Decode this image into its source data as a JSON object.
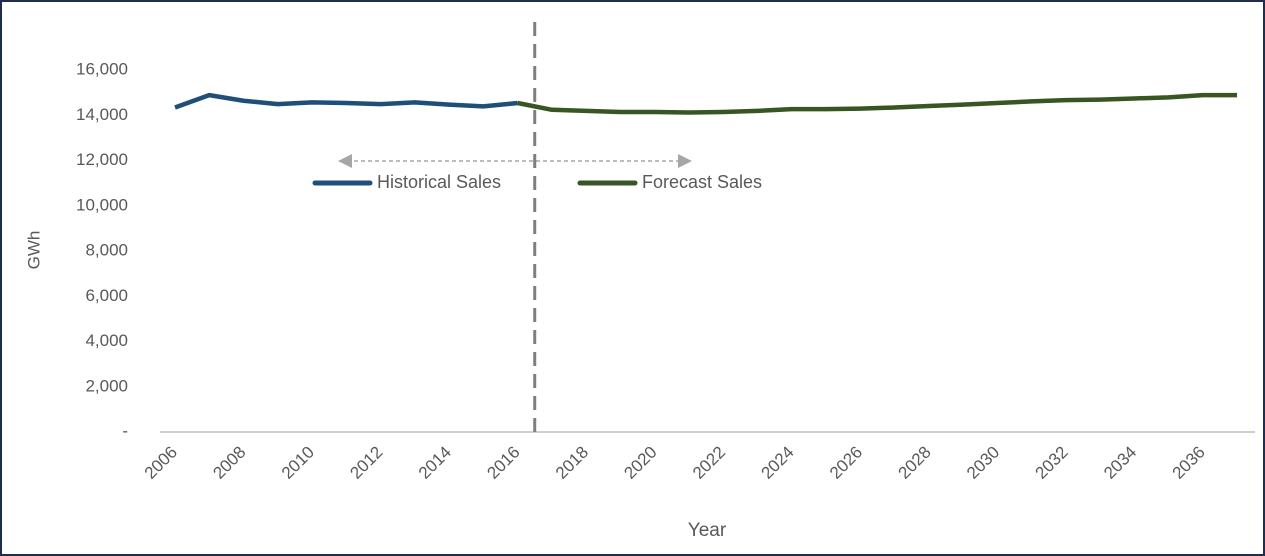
{
  "chart_data": {
    "type": "line",
    "categories": [
      "2006",
      null,
      "2008",
      null,
      "2010",
      null,
      "2012",
      null,
      "2014",
      null,
      "2016",
      null,
      "2018",
      null,
      "2020",
      null,
      "2022",
      null,
      "2024",
      null,
      "2026",
      null,
      "2028",
      null,
      "2030",
      null,
      "2032",
      null,
      "2034",
      null,
      "2036",
      null
    ],
    "series": [
      {
        "name": "Historical Sales",
        "color": "#1f4e79",
        "values": [
          14350,
          14900,
          14650,
          14500,
          14580,
          14550,
          14500,
          14580,
          14480,
          14400,
          14550,
          null,
          null,
          null,
          null,
          null,
          null,
          null,
          null,
          null,
          null,
          null,
          null,
          null,
          null,
          null,
          null,
          null,
          null,
          null,
          null,
          null
        ]
      },
      {
        "name": "Forecast Sales",
        "color": "#375623",
        "values": [
          null,
          null,
          null,
          null,
          null,
          null,
          null,
          null,
          null,
          null,
          14550,
          14250,
          14200,
          14150,
          14150,
          14130,
          14150,
          14200,
          14280,
          14280,
          14300,
          14350,
          14420,
          14480,
          14550,
          14620,
          14680,
          14700,
          14750,
          14800,
          14900,
          14900
        ]
      }
    ],
    "ylim": [
      0,
      18000
    ],
    "yticks": [
      {
        "value": 0,
        "label": "-"
      },
      {
        "value": 2000,
        "label": "2,000"
      },
      {
        "value": 4000,
        "label": "4,000"
      },
      {
        "value": 6000,
        "label": "6,000"
      },
      {
        "value": 8000,
        "label": "8,000"
      },
      {
        "value": 10000,
        "label": "10,000"
      },
      {
        "value": 12000,
        "label": "12,000"
      },
      {
        "value": 14000,
        "label": "14,000"
      },
      {
        "value": 16000,
        "label": "16,000"
      }
    ],
    "y_label": "GWh",
    "x_label": "Year",
    "grid": false
  }
}
